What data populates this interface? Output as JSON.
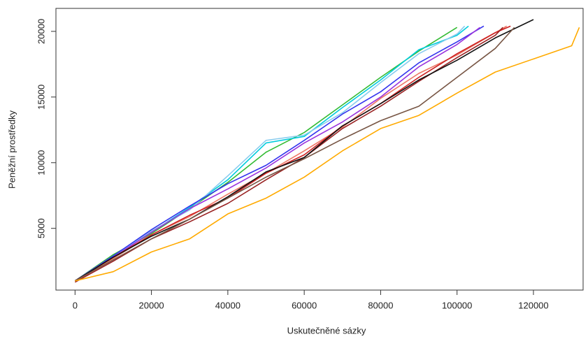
{
  "chart_data": {
    "type": "line",
    "x_label": "Uskutečněné sázky",
    "y_label": "Peněžní prostředky",
    "xlim": [
      -5000,
      133000
    ],
    "ylim": [
      300,
      21750
    ],
    "xticks": [
      0,
      20000,
      40000,
      60000,
      80000,
      100000,
      120000
    ],
    "yticks": [
      5000,
      10000,
      15000,
      20000
    ],
    "series": [
      {
        "color": "#33bb33",
        "x": [
          0,
          10000,
          20000,
          30000,
          40000,
          50000,
          60000,
          70000,
          80000,
          90000,
          100000
        ],
        "values": [
          1000,
          3000,
          4600,
          6500,
          8500,
          10800,
          12300,
          14400,
          16500,
          18500,
          20300
        ]
      },
      {
        "color": "#00ccdd",
        "x": [
          0,
          10000,
          20000,
          30000,
          40000,
          50000,
          60000,
          70000,
          80000,
          90000,
          100000,
          103000
        ],
        "values": [
          1000,
          2900,
          4700,
          6600,
          8700,
          11500,
          12000,
          14200,
          16300,
          18600,
          19700,
          20400
        ]
      },
      {
        "color": "#88ccee",
        "x": [
          0,
          10000,
          20000,
          30000,
          40000,
          50000,
          60000,
          70000,
          80000,
          90000,
          100000,
          102000
        ],
        "values": [
          1000,
          2900,
          4800,
          6400,
          9000,
          11700,
          12100,
          13800,
          16100,
          18300,
          19800,
          20400
        ]
      },
      {
        "color": "#3333ee",
        "x": [
          0,
          10000,
          20000,
          30000,
          40000,
          50000,
          60000,
          70000,
          80000,
          90000,
          100000,
          107000
        ],
        "values": [
          1000,
          2900,
          4900,
          6700,
          8400,
          9800,
          11700,
          13700,
          15400,
          17600,
          19200,
          20400
        ]
      },
      {
        "color": "#9933dd",
        "x": [
          0,
          10000,
          20000,
          30000,
          40000,
          50000,
          60000,
          70000,
          80000,
          90000,
          100000,
          106000
        ],
        "values": [
          1000,
          2800,
          4700,
          6500,
          8000,
          9600,
          11500,
          13100,
          15000,
          17300,
          19000,
          20300
        ]
      },
      {
        "color": "#ee7766",
        "x": [
          0,
          10000,
          20000,
          30000,
          40000,
          50000,
          60000,
          70000,
          80000,
          90000,
          100000,
          110000,
          113000
        ],
        "values": [
          1000,
          2700,
          4500,
          5900,
          7600,
          9200,
          10900,
          12700,
          14900,
          16800,
          18200,
          19900,
          20400
        ]
      },
      {
        "color": "#cc2222",
        "x": [
          0,
          10000,
          20000,
          30000,
          40000,
          50000,
          60000,
          70000,
          80000,
          90000,
          100000,
          110000,
          114000
        ],
        "values": [
          1000,
          2800,
          4500,
          6000,
          7300,
          9200,
          10600,
          12800,
          14500,
          16500,
          18300,
          19900,
          20400
        ]
      },
      {
        "color": "#992222",
        "x": [
          0,
          10000,
          20000,
          30000,
          40000,
          50000,
          60000,
          70000,
          80000,
          90000,
          100000,
          110000,
          112000
        ],
        "values": [
          900,
          2500,
          4200,
          5500,
          6900,
          8700,
          10400,
          12600,
          14300,
          16200,
          18000,
          19700,
          20300
        ]
      },
      {
        "color": "#111111",
        "x": [
          0,
          10000,
          20000,
          30000,
          40000,
          50000,
          60000,
          70000,
          80000,
          90000,
          100000,
          110000,
          120000
        ],
        "values": [
          1000,
          2800,
          4400,
          5700,
          7400,
          9300,
          10400,
          12800,
          14500,
          16300,
          17800,
          19500,
          20900
        ]
      },
      {
        "color": "#775544",
        "x": [
          0,
          10000,
          20000,
          30000,
          40000,
          50000,
          60000,
          70000,
          80000,
          90000,
          100000,
          110000,
          115000
        ],
        "values": [
          1000,
          2600,
          4200,
          5700,
          7300,
          8900,
          10300,
          11800,
          13200,
          14300,
          16500,
          18700,
          20300
        ]
      },
      {
        "color": "#ffaa00",
        "x": [
          0,
          10000,
          20000,
          30000,
          40000,
          50000,
          60000,
          70000,
          80000,
          90000,
          100000,
          110000,
          120000,
          130000,
          132000
        ],
        "values": [
          1000,
          1700,
          3200,
          4200,
          6100,
          7300,
          8900,
          10900,
          12600,
          13600,
          15300,
          16900,
          17900,
          18900,
          20300
        ]
      }
    ]
  }
}
